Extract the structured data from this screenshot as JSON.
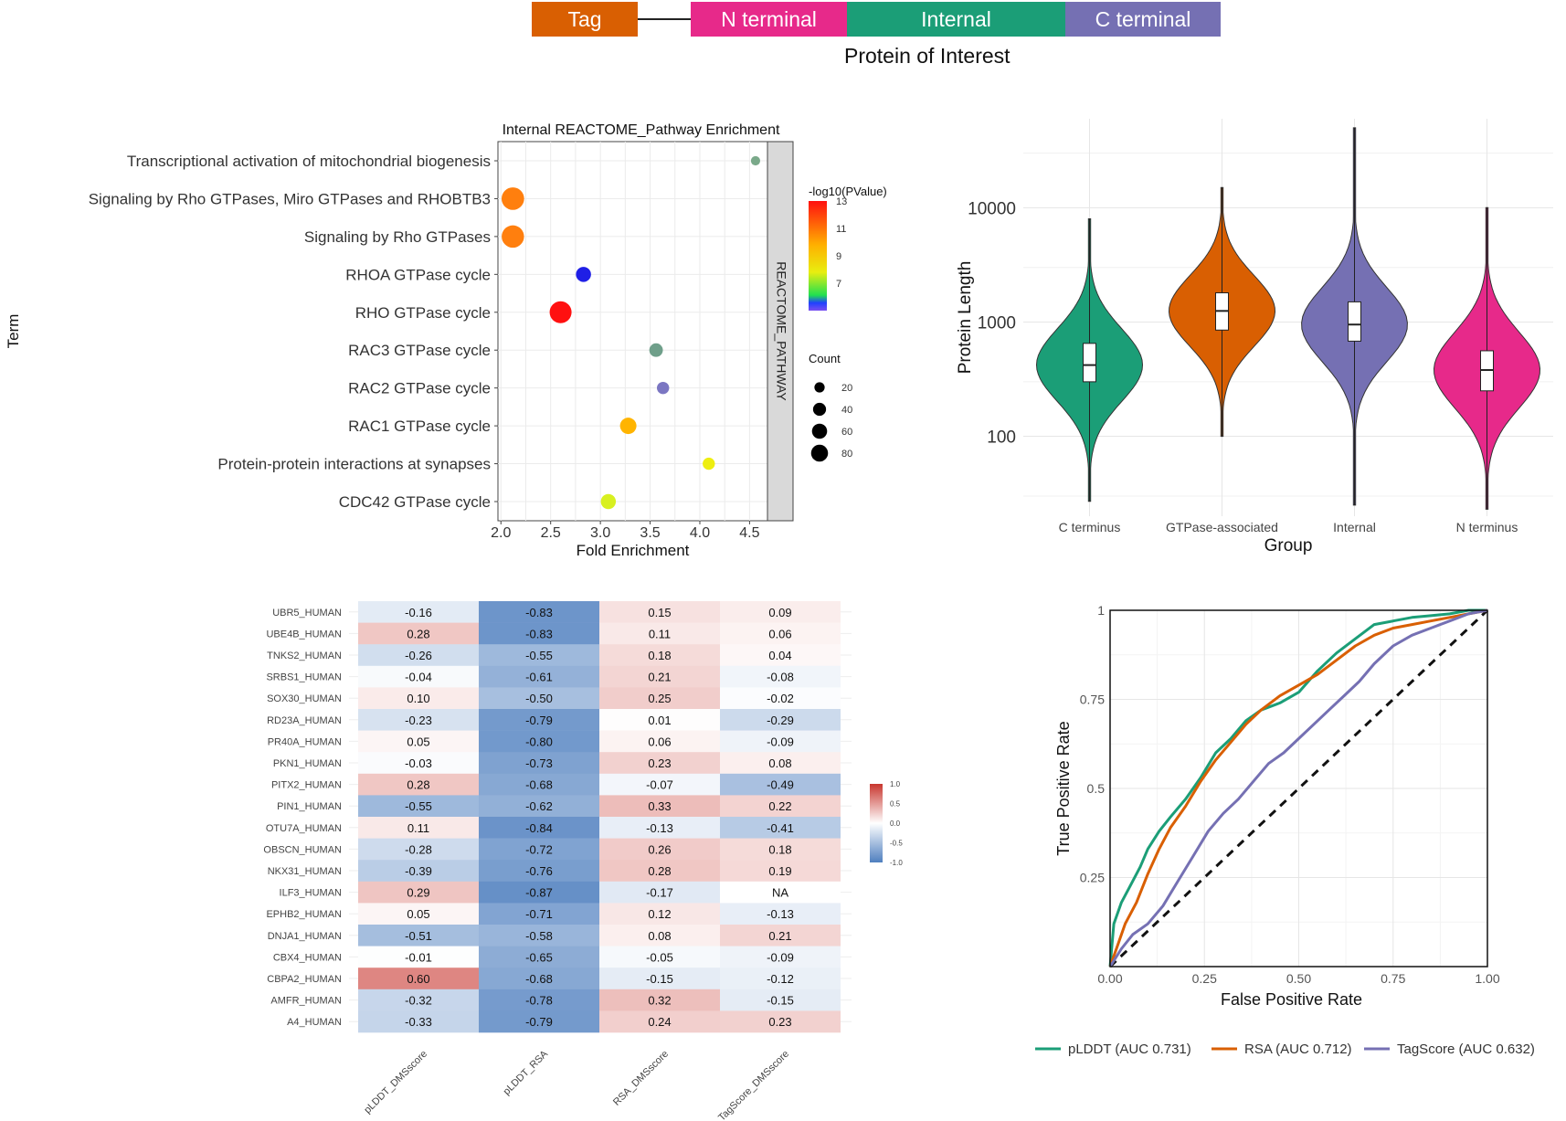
{
  "schema": {
    "segments": [
      {
        "label": "Tag",
        "color": "#d95f02"
      },
      {
        "label": "N terminal",
        "color": "#e7298a"
      },
      {
        "label": "Internal",
        "color": "#1b9e77"
      },
      {
        "label": "C terminal",
        "color": "#7570b3"
      }
    ],
    "caption": "Protein of Interest"
  },
  "chart_data": [
    {
      "id": "enrichment",
      "type": "scatter",
      "title": "Internal REACTOME_Pathway Enrichment",
      "xlabel": "Fold Enrichment",
      "ylabel": "Term",
      "facet_label": "REACTOME_PATHWAY",
      "xlim": [
        1.97,
        4.68
      ],
      "x_ticks": [
        "2.0",
        "2.5",
        "3.0",
        "3.5",
        "4.0",
        "4.5"
      ],
      "color_legend": {
        "title": "-log10(PValue)",
        "ticks": [
          "13",
          "11",
          "9",
          "7"
        ],
        "range": [
          5,
          13
        ]
      },
      "size_legend": {
        "title": "Count",
        "ticks": [
          "20",
          "40",
          "60",
          "80"
        ]
      },
      "points": [
        {
          "term": "Transcriptional activation of mitochondrial biogenesis",
          "x": 4.56,
          "count": 6,
          "neglog10p": 6.2,
          "color": "#7aa98a"
        },
        {
          "term": "Signaling by Rho GTPases, Miro GTPases and RHOBTB3",
          "x": 2.12,
          "count": 88,
          "neglog10p": 11.8,
          "color": "#ff7f0e"
        },
        {
          "term": "Signaling by Rho GTPases",
          "x": 2.12,
          "count": 86,
          "neglog10p": 11.8,
          "color": "#ff7f0e"
        },
        {
          "term": "RHOA GTPase cycle",
          "x": 2.83,
          "count": 30,
          "neglog10p": 5.3,
          "color": "#1f1fe6"
        },
        {
          "term": "RHO GTPase cycle",
          "x": 2.6,
          "count": 82,
          "neglog10p": 13.0,
          "color": "#ff1010"
        },
        {
          "term": "RAC3 GTPase cycle",
          "x": 3.56,
          "count": 22,
          "neglog10p": 6.3,
          "color": "#6f9f8a"
        },
        {
          "term": "RAC2 GTPase cycle",
          "x": 3.63,
          "count": 16,
          "neglog10p": 5.6,
          "color": "#7b76c2"
        },
        {
          "term": "RAC1 GTPase cycle",
          "x": 3.28,
          "count": 38,
          "neglog10p": 10.2,
          "color": "#ffb400"
        },
        {
          "term": "Protein-protein interactions at synapses",
          "x": 4.09,
          "count": 16,
          "neglog10p": 8.6,
          "color": "#eeee10"
        },
        {
          "term": "CDC42 GTPase cycle",
          "x": 3.08,
          "count": 30,
          "neglog10p": 8.2,
          "color": "#d8f020"
        }
      ]
    },
    {
      "id": "violin",
      "type": "violin",
      "xlabel": "Group",
      "ylabel": "Protein Length",
      "y_scale": "log10",
      "ylim": [
        20,
        60000
      ],
      "y_ticks": [
        "100",
        "1000",
        "10000"
      ],
      "groups": [
        {
          "name": "C terminus",
          "color": "#1b9e77",
          "min": 27,
          "q1": 300,
          "median": 420,
          "q3": 650,
          "max": 8000
        },
        {
          "name": "GTPase-associated",
          "color": "#d95f02",
          "min": 100,
          "q1": 850,
          "median": 1250,
          "q3": 1800,
          "max": 15000
        },
        {
          "name": "Internal",
          "color": "#7570b3",
          "min": 25,
          "q1": 680,
          "median": 950,
          "q3": 1500,
          "max": 50000
        },
        {
          "name": "N terminus",
          "color": "#e7298a",
          "min": 23,
          "q1": 250,
          "median": 380,
          "q3": 560,
          "max": 10000
        }
      ]
    },
    {
      "id": "heatmap",
      "type": "heatmap",
      "columns": [
        "pLDDT_DMSscore",
        "pLDDT_RSA",
        "RSA_DMSscore",
        "TagScore_DMSscore"
      ],
      "rows": [
        "UBR5_HUMAN",
        "UBE4B_HUMAN",
        "TNKS2_HUMAN",
        "SRBS1_HUMAN",
        "SOX30_HUMAN",
        "RD23A_HUMAN",
        "PR40A_HUMAN",
        "PKN1_HUMAN",
        "PITX2_HUMAN",
        "PIN1_HUMAN",
        "OTU7A_HUMAN",
        "OBSCN_HUMAN",
        "NKX31_HUMAN",
        "ILF3_HUMAN",
        "EPHB2_HUMAN",
        "DNJA1_HUMAN",
        "CBX4_HUMAN",
        "CBPA2_HUMAN",
        "AMFR_HUMAN",
        "A4_HUMAN"
      ],
      "values": [
        [
          "-0.16",
          "-0.83",
          "0.15",
          "0.09"
        ],
        [
          "0.28",
          "-0.83",
          "0.11",
          "0.06"
        ],
        [
          "-0.26",
          "-0.55",
          "0.18",
          "0.04"
        ],
        [
          "-0.04",
          "-0.61",
          "0.21",
          "-0.08"
        ],
        [
          "0.10",
          "-0.50",
          "0.25",
          "-0.02"
        ],
        [
          "-0.23",
          "-0.79",
          "0.01",
          "-0.29"
        ],
        [
          "0.05",
          "-0.80",
          "0.06",
          "-0.09"
        ],
        [
          "-0.03",
          "-0.73",
          "0.23",
          "0.08"
        ],
        [
          "0.28",
          "-0.68",
          "-0.07",
          "-0.49"
        ],
        [
          "-0.55",
          "-0.62",
          "0.33",
          "0.22"
        ],
        [
          "0.11",
          "-0.84",
          "-0.13",
          "-0.41"
        ],
        [
          "-0.28",
          "-0.72",
          "0.26",
          "0.18"
        ],
        [
          "-0.39",
          "-0.76",
          "0.28",
          "0.19"
        ],
        [
          "0.29",
          "-0.87",
          "-0.17",
          "NA"
        ],
        [
          "0.05",
          "-0.71",
          "0.12",
          "-0.13"
        ],
        [
          "-0.51",
          "-0.58",
          "0.08",
          "0.21"
        ],
        [
          "-0.01",
          "-0.65",
          "-0.05",
          "-0.09"
        ],
        [
          "0.60",
          "-0.68",
          "-0.15",
          "-0.12"
        ],
        [
          "-0.32",
          "-0.78",
          "0.32",
          "-0.15"
        ],
        [
          "-0.33",
          "-0.79",
          "0.24",
          "0.23"
        ]
      ],
      "legend_ticks": [
        "1.0",
        "0.5",
        "0.0",
        "-0.5",
        "-1.0"
      ],
      "colors": {
        "neg": "#4f7fbf",
        "mid": "#ffffff",
        "pos": "#c8362e"
      }
    },
    {
      "id": "roc",
      "type": "line",
      "xlabel": "False Positive Rate",
      "ylabel": "True Positive Rate",
      "xlim": [
        0,
        1
      ],
      "ylim": [
        0,
        1
      ],
      "x_ticks": [
        "0.00",
        "0.25",
        "0.50",
        "0.75",
        "1.00"
      ],
      "y_ticks": [
        "0.25",
        "0.5",
        "0.75",
        "1"
      ],
      "series": [
        {
          "name": "pLDDT (AUC 0.731)",
          "color": "#1b9e77",
          "x": [
            0,
            0.01,
            0.03,
            0.05,
            0.08,
            0.1,
            0.13,
            0.16,
            0.2,
            0.24,
            0.28,
            0.32,
            0.36,
            0.4,
            0.45,
            0.5,
            0.55,
            0.6,
            0.65,
            0.7,
            0.75,
            0.8,
            0.85,
            0.9,
            0.95,
            1
          ],
          "y": [
            0,
            0.12,
            0.18,
            0.22,
            0.28,
            0.33,
            0.38,
            0.42,
            0.47,
            0.53,
            0.6,
            0.64,
            0.69,
            0.72,
            0.74,
            0.77,
            0.83,
            0.88,
            0.92,
            0.96,
            0.97,
            0.98,
            0.985,
            0.99,
            1,
            1
          ]
        },
        {
          "name": "RSA (AUC 0.712)",
          "color": "#d95f02",
          "x": [
            0,
            0.02,
            0.04,
            0.07,
            0.1,
            0.13,
            0.16,
            0.2,
            0.24,
            0.28,
            0.32,
            0.36,
            0.4,
            0.45,
            0.5,
            0.55,
            0.6,
            0.65,
            0.7,
            0.75,
            0.8,
            0.85,
            0.9,
            0.95,
            1
          ],
          "y": [
            0,
            0.06,
            0.12,
            0.18,
            0.26,
            0.33,
            0.39,
            0.45,
            0.52,
            0.58,
            0.63,
            0.68,
            0.72,
            0.76,
            0.79,
            0.82,
            0.86,
            0.9,
            0.93,
            0.95,
            0.96,
            0.97,
            0.98,
            0.99,
            1
          ]
        },
        {
          "name": "TagScore (AUC 0.632)",
          "color": "#7570b3",
          "x": [
            0,
            0.03,
            0.06,
            0.1,
            0.14,
            0.18,
            0.22,
            0.26,
            0.3,
            0.34,
            0.38,
            0.42,
            0.46,
            0.5,
            0.54,
            0.58,
            0.62,
            0.66,
            0.7,
            0.75,
            0.8,
            0.85,
            0.9,
            0.95,
            1
          ],
          "y": [
            0,
            0.05,
            0.09,
            0.12,
            0.17,
            0.24,
            0.31,
            0.38,
            0.43,
            0.47,
            0.52,
            0.57,
            0.6,
            0.64,
            0.68,
            0.72,
            0.76,
            0.8,
            0.85,
            0.9,
            0.93,
            0.95,
            0.97,
            0.99,
            1
          ]
        }
      ]
    }
  ]
}
